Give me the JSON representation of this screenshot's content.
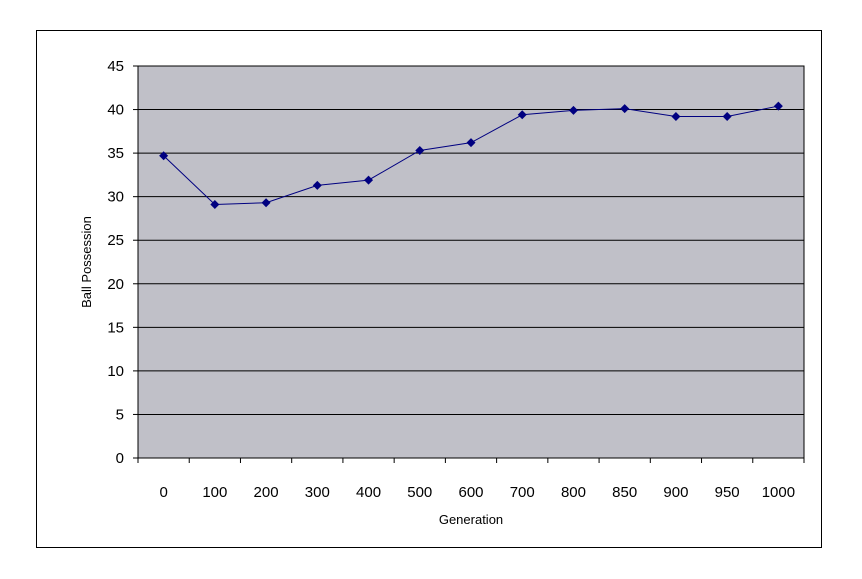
{
  "chart_data": {
    "type": "line",
    "title": "",
    "xlabel": "Generation",
    "ylabel": "Ball Possession",
    "categories": [
      "0",
      "100",
      "200",
      "300",
      "400",
      "500",
      "600",
      "700",
      "800",
      "850",
      "900",
      "950",
      "1000"
    ],
    "series": [
      {
        "values": [
          34.7,
          29.1,
          29.3,
          31.3,
          31.9,
          35.3,
          36.2,
          39.4,
          39.9,
          40.1,
          39.2,
          39.2,
          40.4
        ]
      }
    ],
    "ylim": [
      0,
      45
    ],
    "yticks": [
      0,
      5,
      10,
      15,
      20,
      25,
      30,
      35,
      40,
      45
    ],
    "grid": true,
    "legend": "none",
    "colors": {
      "plot_background": "#C0C0C8",
      "series_line": "#000080",
      "marker": "#000080",
      "gridline": "#000000"
    }
  }
}
